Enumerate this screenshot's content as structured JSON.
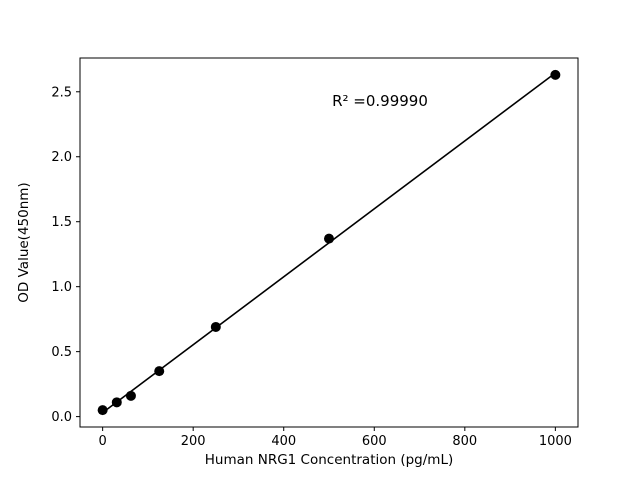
{
  "chart_data": {
    "type": "scatter",
    "x": [
      0,
      31.25,
      62.5,
      125,
      250,
      500,
      1000
    ],
    "y": [
      0.05,
      0.11,
      0.16,
      0.35,
      0.69,
      1.37,
      2.63
    ],
    "fit_line": "linear-regression",
    "annotation": "R² =0.99990",
    "title": "",
    "xlabel": "Human NRG1 Concentration (pg/mL)",
    "ylabel": "OD Value(450nm)",
    "x_ticks": [
      0,
      200,
      400,
      600,
      800,
      1000
    ],
    "y_ticks": [
      0.0,
      0.5,
      1.0,
      1.5,
      2.0,
      2.5
    ],
    "xlim": [
      -50,
      1050
    ],
    "ylim": [
      -0.08,
      2.76
    ],
    "grid": false,
    "legend": "none",
    "marker_color": "#000000",
    "line_color": "#000000",
    "background": "#ffffff"
  }
}
